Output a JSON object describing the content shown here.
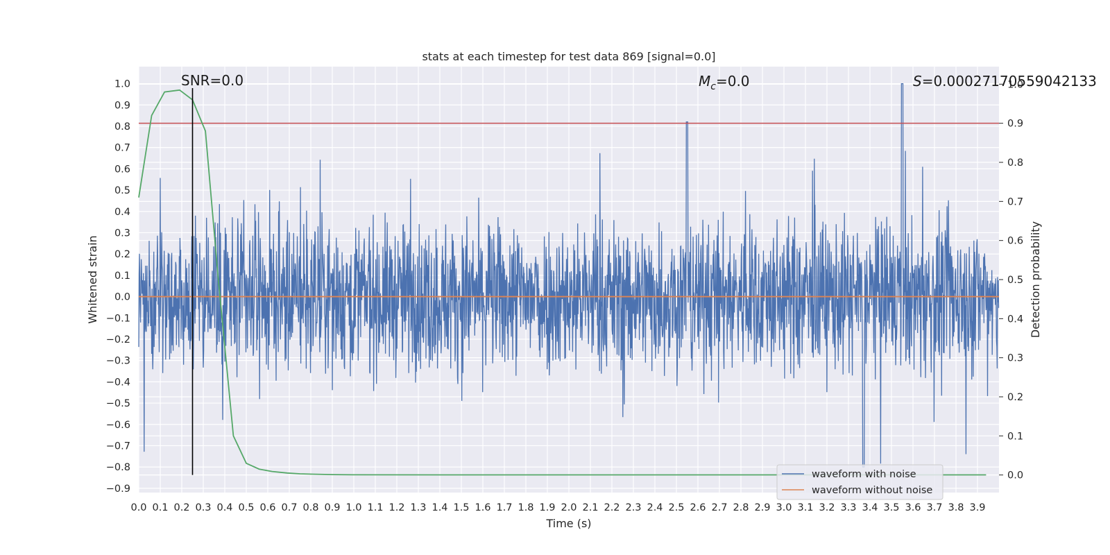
{
  "chart_data": {
    "type": "line",
    "title": "stats at each timestep for test data 869 [signal=0.0]",
    "xlabel": "Time (s)",
    "ylabel": "Whitened strain",
    "ylabel_right": "Detection probability",
    "xlim": [
      0.0,
      4.0
    ],
    "ylim": [
      -0.92,
      1.08
    ],
    "ylim_right": [
      -0.045,
      1.045
    ],
    "x_ticks": [
      "0.0",
      "0.1",
      "0.2",
      "0.3",
      "0.4",
      "0.5",
      "0.6",
      "0.7",
      "0.8",
      "0.9",
      "1.0",
      "1.1",
      "1.2",
      "1.3",
      "1.4",
      "1.5",
      "1.6",
      "1.7",
      "1.8",
      "1.9",
      "2.0",
      "2.1",
      "2.2",
      "2.3",
      "2.4",
      "2.5",
      "2.6",
      "2.7",
      "2.8",
      "2.9",
      "3.0",
      "3.1",
      "3.2",
      "3.3",
      "3.4",
      "3.5",
      "3.6",
      "3.7",
      "3.8",
      "3.9"
    ],
    "y_ticks": [
      "1.0",
      "0.9",
      "0.8",
      "0.7",
      "0.6",
      "0.5",
      "0.4",
      "0.3",
      "0.2",
      "0.1",
      "0.0",
      "−0.1",
      "−0.2",
      "−0.3",
      "−0.4",
      "−0.5",
      "−0.6",
      "−0.7",
      "−0.8",
      "−0.9"
    ],
    "y_ticks_right": [
      "1.0",
      "0.9",
      "0.8",
      "0.7",
      "0.6",
      "0.5",
      "0.4",
      "0.3",
      "0.2",
      "0.1",
      "0.0"
    ],
    "grid": true,
    "legend_position": "lower-right",
    "annotations": {
      "snr": "SNR=0.0",
      "mc_symbol": "M",
      "mc_sub": "c",
      "mc_value": "=0.0",
      "s_symbol": "S",
      "s_value": "=0.00027170559042133"
    },
    "threshold_right": 0.9,
    "marker_time": 0.25,
    "series": [
      {
        "name": "waveform with noise",
        "color": "#4c72b0",
        "description_values": "dense noise trace, amplitude mostly within ±0.5, peaks up to 1.0 near t=3.55"
      },
      {
        "name": "waveform without noise",
        "color": "#dd8452",
        "x": [
          0.0,
          4.0
        ],
        "y": [
          0.0,
          0.0
        ]
      },
      {
        "color": "#55a868",
        "axis": "right",
        "x": [
          0.0,
          0.06,
          0.12,
          0.19,
          0.25,
          0.31,
          0.37,
          0.44,
          0.5,
          0.56,
          0.62,
          0.69,
          0.75,
          0.81,
          0.9,
          1.0,
          1.5,
          2.0,
          2.5,
          3.0,
          3.5,
          3.94
        ],
        "y": [
          0.71,
          0.92,
          0.98,
          0.985,
          0.96,
          0.88,
          0.5,
          0.1,
          0.03,
          0.015,
          0.009,
          0.005,
          0.003,
          0.002,
          0.001,
          0.0005,
          0.0003,
          0.0003,
          0.0003,
          0.0003,
          0.0003,
          0.0003
        ]
      },
      {
        "color": "#c44e52",
        "axis": "right",
        "x": [
          0.0,
          4.0
        ],
        "y": [
          0.9,
          0.9
        ]
      }
    ],
    "colors": {
      "background": "#eaeaf2",
      "grid": "#ffffff",
      "marker_line": "#000000"
    }
  }
}
